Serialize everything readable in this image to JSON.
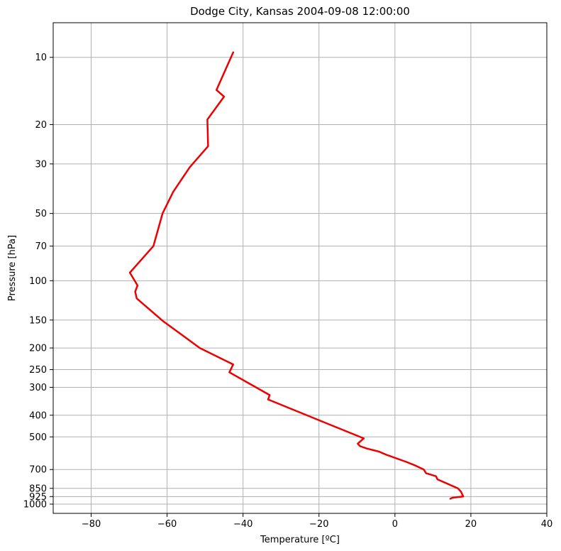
{
  "chart_data": {
    "type": "line",
    "title": "Dodge City, Kansas  2004-09-08 12:00:00",
    "xlabel": "Temperature [ºC]",
    "ylabel": "Pressure [hPa]",
    "xlim": [
      -90,
      40
    ],
    "ylim": [
      1100,
      7
    ],
    "y_scale": "log",
    "grid": true,
    "x_ticks": [
      -80,
      -60,
      -40,
      -20,
      0,
      20,
      40
    ],
    "x_tick_labels": [
      "−80",
      "−60",
      "−40",
      "−20",
      "0",
      "20",
      "40"
    ],
    "y_ticks": [
      10,
      20,
      30,
      50,
      70,
      100,
      150,
      200,
      250,
      300,
      400,
      500,
      700,
      850,
      925,
      1000
    ],
    "y_tick_labels": [
      "10",
      "20",
      "30",
      "50",
      "70",
      "100",
      "150",
      "200",
      "250",
      "300",
      "400",
      "500",
      "700",
      "850",
      "925",
      "1000"
    ],
    "series": [
      {
        "color": "#ee0000",
        "points": [
          {
            "t": 14.6,
            "p": 946
          },
          {
            "t": 15.2,
            "p": 936
          },
          {
            "t": 18.0,
            "p": 925
          },
          {
            "t": 17.4,
            "p": 880
          },
          {
            "t": 16.6,
            "p": 850
          },
          {
            "t": 11.2,
            "p": 775
          },
          {
            "t": 10.8,
            "p": 750
          },
          {
            "t": 8.2,
            "p": 727
          },
          {
            "t": 7.6,
            "p": 700
          },
          {
            "t": 5.4,
            "p": 672
          },
          {
            "t": 3.0,
            "p": 647
          },
          {
            "t": -2.4,
            "p": 600
          },
          {
            "t": -4.2,
            "p": 582
          },
          {
            "t": -7.4,
            "p": 564
          },
          {
            "t": -9.2,
            "p": 550
          },
          {
            "t": -9.8,
            "p": 536
          },
          {
            "t": -8.2,
            "p": 508
          },
          {
            "t": -19.4,
            "p": 425
          },
          {
            "t": -33.4,
            "p": 340
          },
          {
            "t": -33.0,
            "p": 325
          },
          {
            "t": -43.6,
            "p": 257
          },
          {
            "t": -42.6,
            "p": 237
          },
          {
            "t": -51.4,
            "p": 200
          },
          {
            "t": -61.2,
            "p": 151
          },
          {
            "t": -68.0,
            "p": 120
          },
          {
            "t": -68.4,
            "p": 112
          },
          {
            "t": -67.8,
            "p": 105
          },
          {
            "t": -69.8,
            "p": 92
          },
          {
            "t": -63.6,
            "p": 70
          },
          {
            "t": -61.2,
            "p": 50
          },
          {
            "t": -58.4,
            "p": 40
          },
          {
            "t": -54.0,
            "p": 31
          },
          {
            "t": -49.2,
            "p": 25
          },
          {
            "t": -49.4,
            "p": 19
          },
          {
            "t": -45.0,
            "p": 15
          },
          {
            "t": -47.0,
            "p": 14
          },
          {
            "t": -42.6,
            "p": 9.5
          }
        ]
      }
    ]
  }
}
